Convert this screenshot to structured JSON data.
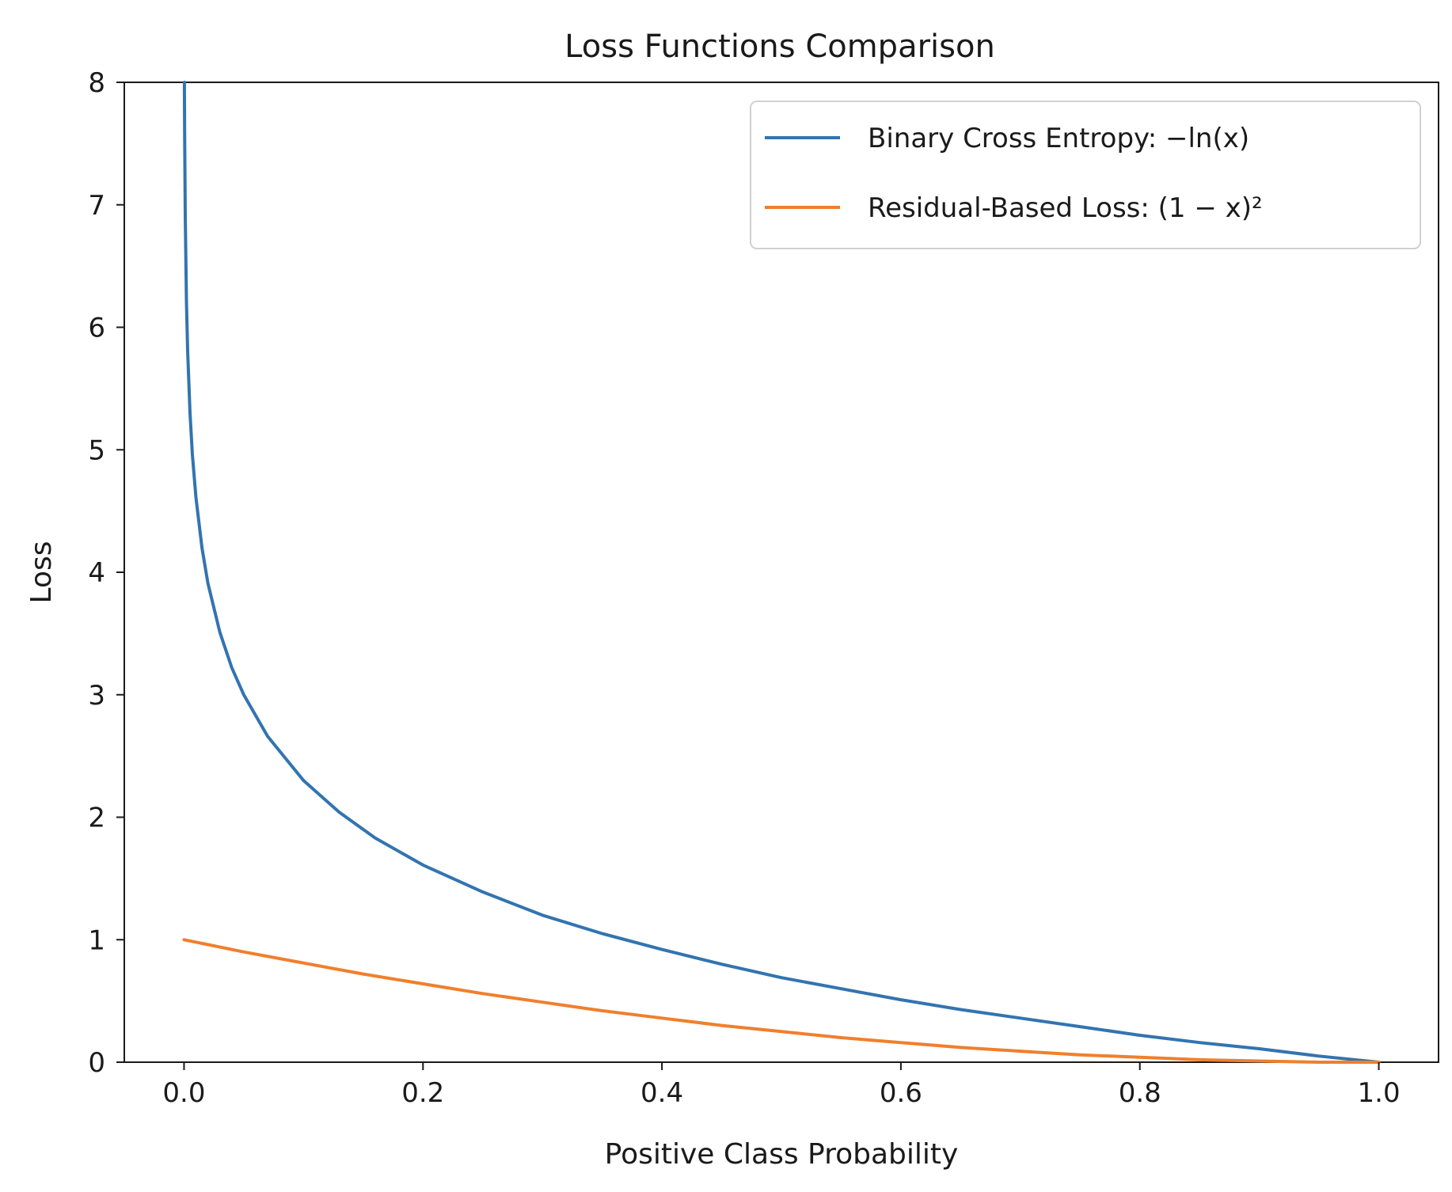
{
  "chart_data": {
    "type": "line",
    "title": "Loss Functions Comparison",
    "xlabel": "Positive Class Probability",
    "ylabel": "Loss",
    "xlim": [
      -0.05,
      1.05
    ],
    "ylim": [
      0,
      8
    ],
    "x_ticks": [
      0.0,
      0.2,
      0.4,
      0.6,
      0.8,
      1.0
    ],
    "x_tick_labels": [
      "0.0",
      "0.2",
      "0.4",
      "0.6",
      "0.8",
      "1.0"
    ],
    "y_ticks": [
      0,
      1,
      2,
      3,
      4,
      5,
      6,
      7,
      8
    ],
    "y_tick_labels": [
      "0",
      "1",
      "2",
      "3",
      "4",
      "5",
      "6",
      "7",
      "8"
    ],
    "grid": false,
    "legend_position": "top-right",
    "series": [
      {
        "name": "Binary Cross Entropy: −ln(x)",
        "color": "#3274b0",
        "x": [
          0.0003,
          0.0005,
          0.001,
          0.002,
          0.003,
          0.005,
          0.007,
          0.01,
          0.015,
          0.02,
          0.03,
          0.04,
          0.05,
          0.07,
          0.1,
          0.13,
          0.16,
          0.2,
          0.25,
          0.3,
          0.35,
          0.4,
          0.45,
          0.5,
          0.55,
          0.6,
          0.65,
          0.7,
          0.75,
          0.8,
          0.85,
          0.9,
          0.95,
          1.0
        ],
        "y": [
          8.11,
          7.6,
          6.91,
          6.21,
          5.81,
          5.3,
          4.96,
          4.61,
          4.2,
          3.91,
          3.51,
          3.22,
          3.0,
          2.66,
          2.3,
          2.04,
          1.83,
          1.61,
          1.39,
          1.2,
          1.05,
          0.92,
          0.8,
          0.69,
          0.6,
          0.51,
          0.43,
          0.36,
          0.29,
          0.22,
          0.16,
          0.11,
          0.05,
          0.0
        ]
      },
      {
        "name": "Residual-Based Loss: (1 − x)²",
        "color": "#f07f2d",
        "x": [
          0.0,
          0.05,
          0.1,
          0.15,
          0.2,
          0.25,
          0.3,
          0.35,
          0.4,
          0.45,
          0.5,
          0.55,
          0.6,
          0.65,
          0.7,
          0.75,
          0.8,
          0.85,
          0.9,
          0.95,
          1.0
        ],
        "y": [
          1.0,
          0.9,
          0.81,
          0.72,
          0.64,
          0.56,
          0.49,
          0.42,
          0.36,
          0.3,
          0.25,
          0.2,
          0.16,
          0.12,
          0.09,
          0.06,
          0.04,
          0.02,
          0.01,
          0.0,
          0.0
        ]
      }
    ]
  }
}
